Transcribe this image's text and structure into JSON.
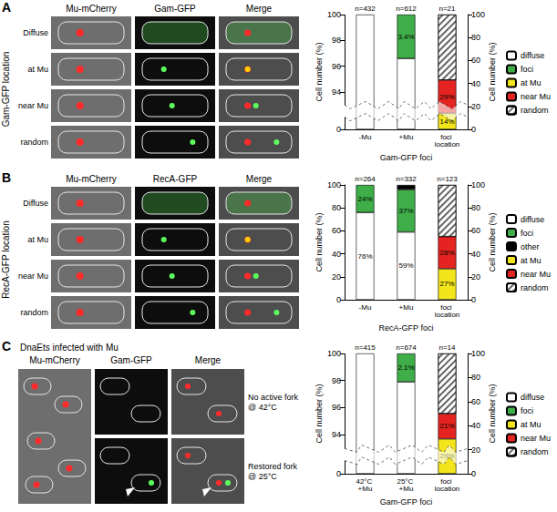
{
  "chart_data": [
    {
      "type": "bar",
      "stacked": true,
      "grid": false,
      "legend": "right",
      "data_labels": true,
      "categories": [
        "-Mu",
        "+Mu",
        "foci location"
      ],
      "n_labels": [
        "n=432",
        "n=612",
        "n=21"
      ],
      "x_label": "Gam-GFP foci",
      "y_label": "Cell number (%)",
      "y2_label": "Cell number (%)",
      "ylim": [
        0,
        100
      ],
      "yticks": [
        0,
        94,
        96,
        98,
        100
      ],
      "y2lim": [
        0,
        100
      ],
      "y2ticks": [
        0,
        20,
        40,
        60,
        80,
        100
      ],
      "series": [
        {
          "name": "diffuse",
          "color": "#ffffff",
          "values": [
            100,
            96.6,
            null
          ]
        },
        {
          "name": "foci",
          "color": "#3fae49",
          "values": [
            null,
            3.4,
            null
          ],
          "value_labels": [
            null,
            "3.4%",
            null
          ]
        },
        {
          "name": "at Mu",
          "color": "#f3e51c",
          "axis": "y2",
          "values": [
            null,
            null,
            14
          ],
          "value_labels": [
            null,
            null,
            "14%"
          ]
        },
        {
          "name": "near Mu",
          "color": "#e52421",
          "axis": "y2",
          "values": [
            null,
            null,
            29
          ],
          "value_labels": [
            null,
            null,
            "29%"
          ]
        },
        {
          "name": "random",
          "color": "#ffffff",
          "marker": "hatch",
          "axis": "y2",
          "values": [
            null,
            null,
            57
          ]
        }
      ]
    },
    {
      "type": "bar",
      "stacked": true,
      "grid": false,
      "legend": "right",
      "data_labels": true,
      "categories": [
        "-Mu",
        "+Mu",
        "foci location"
      ],
      "n_labels": [
        "n=264",
        "n=332",
        "n=123"
      ],
      "x_label": "RecA-GFP foci",
      "y_label": "Cell number (%)",
      "y2_label": "Cell number (%)",
      "ylim": [
        0,
        100
      ],
      "yticks": [
        0,
        20,
        40,
        60,
        80,
        100
      ],
      "y2lim": [
        0,
        100
      ],
      "y2ticks": [
        0,
        20,
        40,
        60,
        80,
        100
      ],
      "series": [
        {
          "name": "diffuse",
          "color": "#ffffff",
          "values": [
            76,
            59,
            null
          ],
          "value_labels": [
            "76%",
            "59%",
            null
          ]
        },
        {
          "name": "foci",
          "color": "#3fae49",
          "values": [
            24,
            37,
            null
          ],
          "value_labels": [
            "24%",
            "37%",
            null
          ]
        },
        {
          "name": "other",
          "color": "#000000",
          "values": [
            null,
            4,
            null
          ]
        },
        {
          "name": "at Mu",
          "color": "#f3e51c",
          "axis": "y2",
          "values": [
            null,
            null,
            27
          ],
          "value_labels": [
            null,
            null,
            "27%"
          ]
        },
        {
          "name": "near Mu",
          "color": "#e52421",
          "axis": "y2",
          "values": [
            null,
            null,
            28
          ],
          "value_labels": [
            null,
            null,
            "28%"
          ]
        },
        {
          "name": "random",
          "color": "#ffffff",
          "marker": "hatch",
          "axis": "y2",
          "values": [
            null,
            null,
            45
          ]
        }
      ]
    },
    {
      "type": "bar",
      "stacked": true,
      "grid": false,
      "legend": "right",
      "data_labels": true,
      "categories": [
        "42°C +Mu",
        "25°C +Mu",
        "foci location"
      ],
      "n_labels": [
        "n=415",
        "n=674",
        "n=14"
      ],
      "x_label": "Gam-GFP foci",
      "y_label": "Cell number (%)",
      "y2_label": "Cell number (%)",
      "ylim": [
        0,
        100
      ],
      "yticks": [
        0,
        94,
        96,
        98,
        100
      ],
      "y2lim": [
        0,
        100
      ],
      "y2ticks": [
        0,
        20,
        40,
        60,
        80,
        100
      ],
      "series": [
        {
          "name": "diffuse",
          "color": "#ffffff",
          "values": [
            100,
            97.9,
            null
          ]
        },
        {
          "name": "foci",
          "color": "#3fae49",
          "values": [
            null,
            2.1,
            null
          ],
          "value_labels": [
            null,
            "2.1%",
            null
          ]
        },
        {
          "name": "at Mu",
          "color": "#f3e51c",
          "axis": "y2",
          "values": [
            null,
            null,
            29
          ],
          "value_labels": [
            null,
            null,
            "29%"
          ]
        },
        {
          "name": "near Mu",
          "color": "#e52421",
          "axis": "y2",
          "values": [
            null,
            null,
            21
          ],
          "value_labels": [
            null,
            null,
            "21%"
          ]
        },
        {
          "name": "random",
          "color": "#ffffff",
          "marker": "hatch",
          "axis": "y2",
          "values": [
            null,
            null,
            50
          ]
        }
      ]
    }
  ],
  "image_panels": [
    {
      "letter": "A",
      "side_label": "Gam-GFP location",
      "columns": [
        "Mu-mCherry",
        "Gam-GFP",
        "Merge"
      ],
      "rows": [
        "Diffuse",
        "at Mu",
        "near Mu",
        "random"
      ]
    },
    {
      "letter": "B",
      "side_label": "RecA-GFP location",
      "columns": [
        "Mu-mCherry",
        "RecA-GFP",
        "Merge"
      ],
      "rows": [
        "Diffuse",
        "at Mu",
        "near Mu",
        "random"
      ]
    },
    {
      "letter": "C",
      "title": "DnaEts infected with Mu",
      "columns": [
        "Mu-mCherry",
        "Gam-GFP",
        "Merge"
      ],
      "rows": [
        "No active fork @ 42°C",
        "Restored fork @ 25°C"
      ]
    }
  ]
}
